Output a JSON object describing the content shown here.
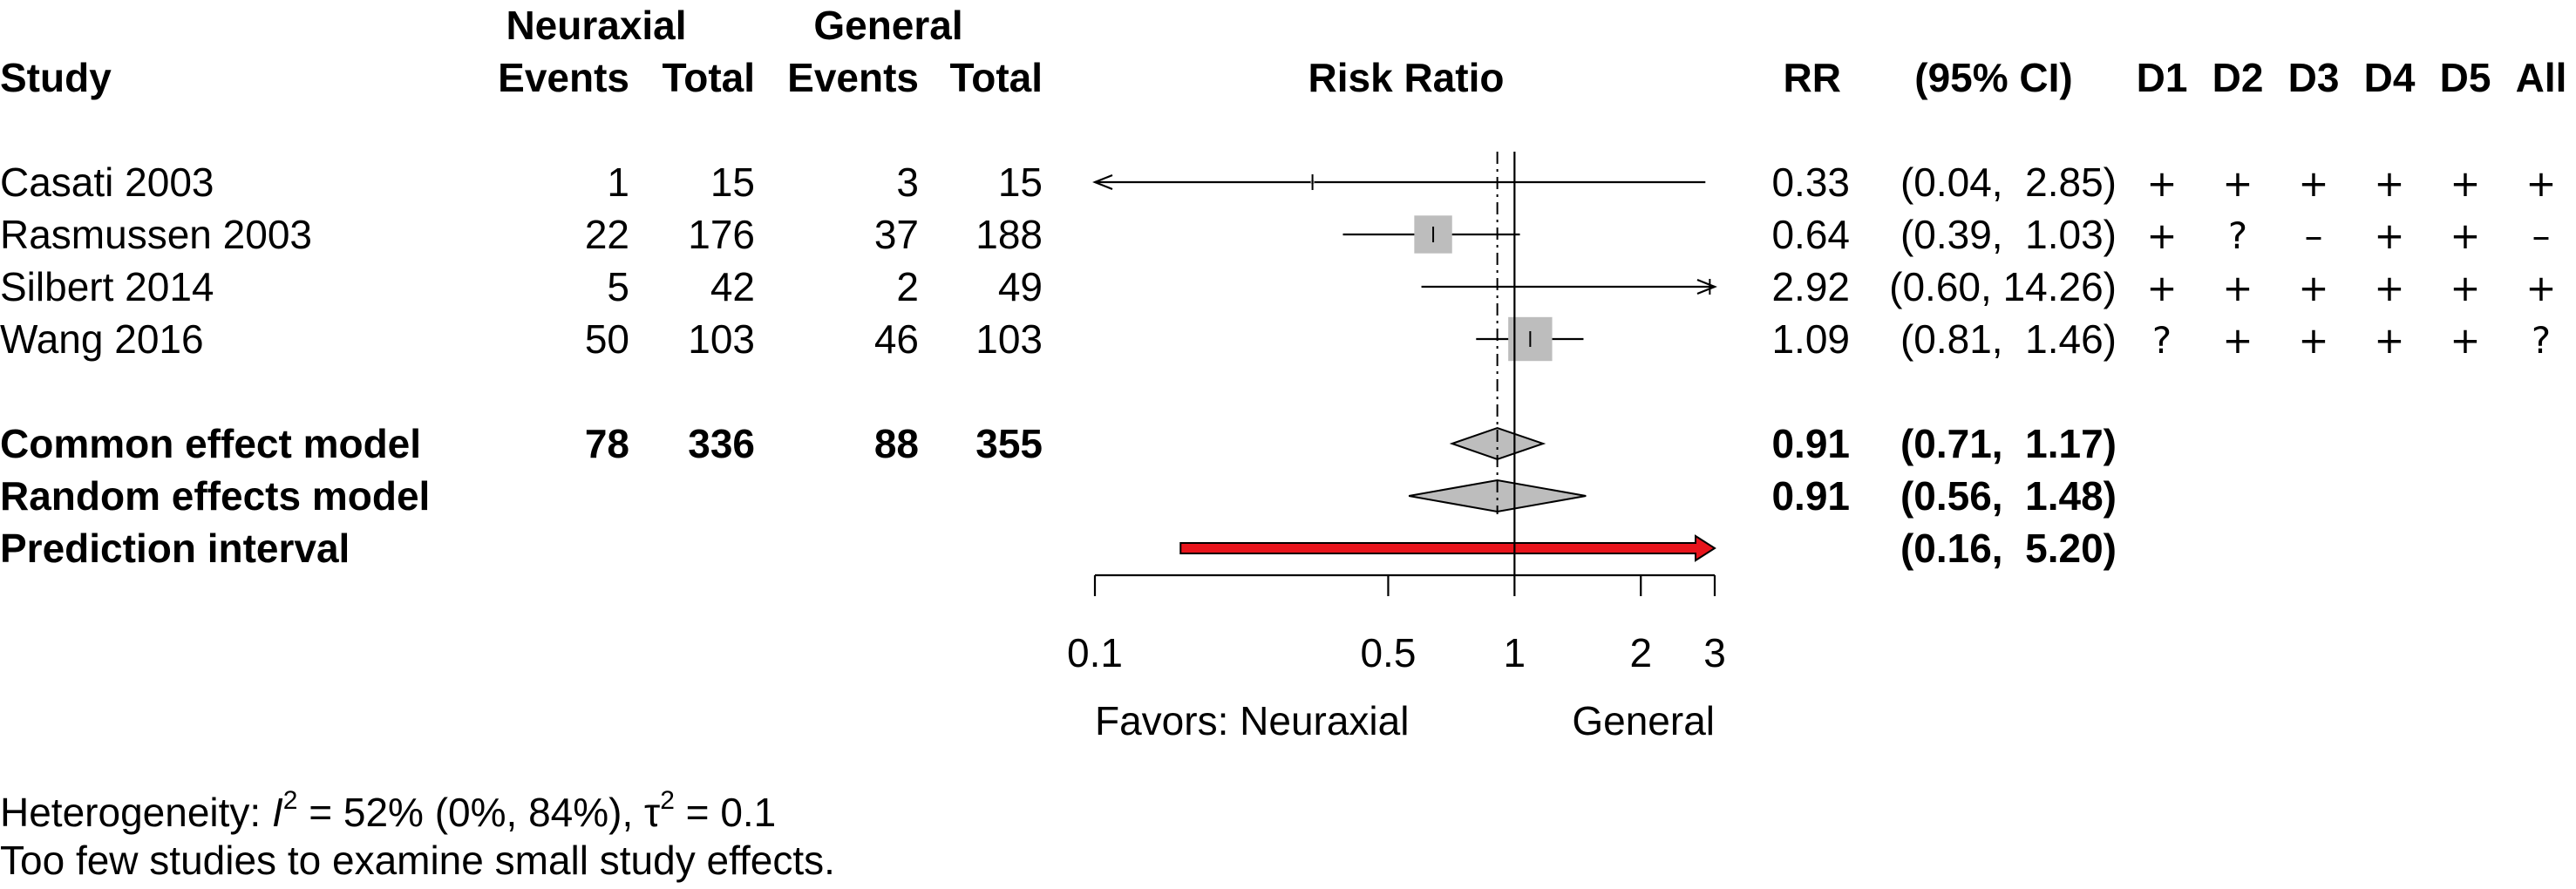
{
  "header": {
    "study": "Study",
    "group1": "Neuraxial",
    "group2": "General",
    "events": "Events",
    "total": "Total",
    "effect": "Risk Ratio",
    "rr": "RR",
    "ci": "(95% CI)",
    "domains": [
      "D1",
      "D2",
      "D3",
      "D4",
      "D5",
      "All"
    ]
  },
  "studies": [
    {
      "name": "Casati 2003",
      "e1": "1",
      "n1": "15",
      "e2": "3",
      "n2": "15",
      "rr": 0.33,
      "lo": 0.04,
      "hi": 2.85,
      "rr_text": "0.33",
      "ci_text": "(0.04,  2.85)",
      "weight": 0.06,
      "arrow_left": true,
      "arrow_right": false,
      "rob": [
        "+",
        "+",
        "+",
        "+",
        "+",
        "+"
      ]
    },
    {
      "name": "Rasmussen 2003",
      "e1": "22",
      "n1": "176",
      "e2": "37",
      "n2": "188",
      "rr": 0.64,
      "lo": 0.39,
      "hi": 1.03,
      "rr_text": "0.64",
      "ci_text": "(0.39,  1.03)",
      "weight": 0.62,
      "arrow_left": false,
      "arrow_right": false,
      "rob": [
        "+",
        "?",
        "–",
        "+",
        "+",
        "–"
      ]
    },
    {
      "name": "Silbert 2014",
      "e1": "5",
      "n1": "42",
      "e2": "2",
      "n2": "49",
      "rr": 2.92,
      "lo": 0.6,
      "hi": 14.26,
      "rr_text": "2.92",
      "ci_text": "(0.60, 14.26)",
      "weight": 0.0,
      "arrow_left": false,
      "arrow_right": true,
      "rob": [
        "+",
        "+",
        "+",
        "+",
        "+",
        "+"
      ]
    },
    {
      "name": "Wang 2016",
      "e1": "50",
      "n1": "103",
      "e2": "46",
      "n2": "103",
      "rr": 1.09,
      "lo": 0.81,
      "hi": 1.46,
      "rr_text": "1.09",
      "ci_text": "(0.81,  1.46)",
      "weight": 0.72,
      "arrow_left": false,
      "arrow_right": false,
      "rob": [
        "?",
        "+",
        "+",
        "+",
        "+",
        "?"
      ]
    }
  ],
  "pooled": [
    {
      "name": "Common effect model",
      "e1": "78",
      "n1": "336",
      "e2": "88",
      "n2": "355",
      "rr": 0.91,
      "lo": 0.71,
      "hi": 1.17,
      "rr_text": "0.91",
      "ci_text": "(0.71,  1.17)"
    },
    {
      "name": "Random effects model",
      "e1": "",
      "n1": "",
      "e2": "",
      "n2": "",
      "rr": 0.91,
      "lo": 0.56,
      "hi": 1.48,
      "rr_text": "0.91",
      "ci_text": "(0.56,  1.48)"
    }
  ],
  "prediction": {
    "name": "Prediction interval",
    "lo": 0.16,
    "hi": 5.2,
    "ci_text": "(0.16,  5.20)",
    "color": "#e8141c"
  },
  "chart_data": {
    "type": "forest",
    "x_scale": "log",
    "xlim": [
      0.1,
      3
    ],
    "x_ticks": [
      0.1,
      0.5,
      1,
      2,
      3
    ],
    "x_tick_labels": [
      "0.1",
      "0.5",
      "1",
      "2",
      "3"
    ],
    "null_line": 1,
    "favors_left": "Favors: Neuraxial",
    "favors_right": "General",
    "box_color": "#bdbdbd",
    "diamond_color": "#bdbdbd"
  },
  "footer": {
    "het_prefix": "Heterogeneity: ",
    "het_i": "I",
    "het_sup": "2",
    "het_mid": " = 52% (0%, 84%), τ",
    "het_sup2": "2",
    "het_end": " = 0.1",
    "note": "Too few studies to examine small study effects."
  }
}
